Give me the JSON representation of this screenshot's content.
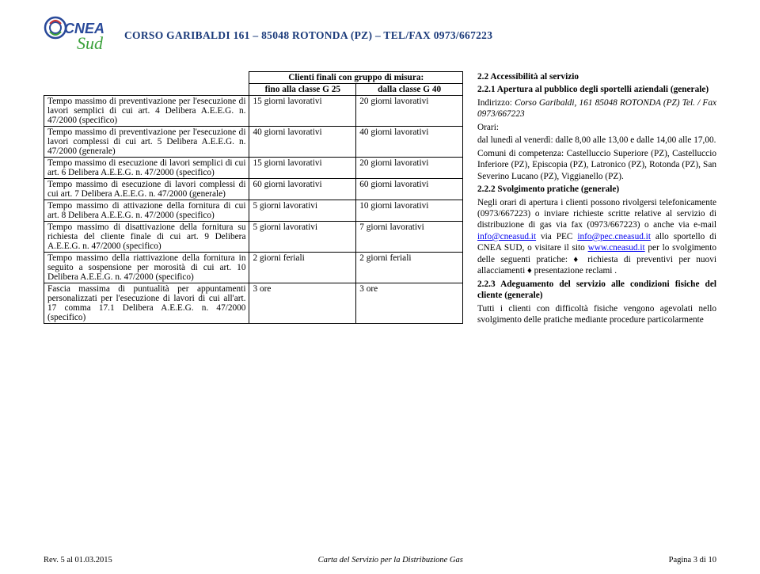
{
  "header": {
    "address": "CORSO GARIBALDI 161 – 85048 ROTONDA (PZ) – TEL/FAX  0973/667223"
  },
  "table": {
    "header_top": "Clienti finali con gruppo di misura:",
    "header_sub_left": "fino alla classe G 25",
    "header_sub_right": "dalla classe G 40",
    "rows": [
      {
        "desc": "Tempo massimo di preventivazione per l'esecuzione di lavori semplici di cui art. 4 Delibera A.E.E.G. n. 47/2000 (specifico)",
        "c1": "15 giorni lavorativi",
        "c2": "20 giorni lavorativi"
      },
      {
        "desc": "Tempo massimo di preventivazione per l'esecuzione di lavori complessi di cui art. 5 Delibera A.E.E.G. n. 47/2000 (generale)",
        "c1": "40 giorni lavorativi",
        "c2": "40 giorni lavorativi"
      },
      {
        "desc": "Tempo massimo di esecuzione di lavori semplici di cui art. 6 Delibera A.E.E.G. n. 47/2000 (specifico)",
        "c1": "15 giorni lavorativi",
        "c2": "20 giorni lavorativi"
      },
      {
        "desc": "Tempo massimo di esecuzione di lavori complessi di cui art. 7 Delibera A.E.E.G. n. 47/2000 (generale)",
        "c1": "60 giorni lavorativi",
        "c2": "60 giorni lavorativi"
      },
      {
        "desc": "Tempo massimo di attivazione della fornitura di cui art. 8 Delibera A.E.E.G. n. 47/2000 (specifico)",
        "c1": "5 giorni lavorativi",
        "c2": "10 giorni lavorativi"
      },
      {
        "desc": "Tempo massimo di disattivazione della fornitura su richiesta del cliente finale di cui art. 9 Delibera A.E.E.G. n. 47/2000 (specifico)",
        "c1": "5 giorni lavorativi",
        "c2": "7 giorni lavorativi"
      },
      {
        "desc": "Tempo massimo della riattivazione della fornitura in seguito a sospensione per morosità di cui art. 10 Delibera A.E.E.G. n. 47/2000 (specifico)",
        "c1": "2 giorni feriali",
        "c2": "2 giorni feriali"
      },
      {
        "desc": "Fascia massima di puntualità per appuntamenti personalizzati per l'esecuzione di lavori di cui all'art. 17 comma 17.1 Delibera A.E.E.G. n. 47/2000 (specifico)",
        "c1": "3 ore",
        "c2": "3 ore"
      }
    ]
  },
  "right": {
    "sec22": "2.2 Accessibilità al servizio",
    "sec221": "2.2.1 Apertura al pubblico degli sportelli aziendali (generale)",
    "p1a": "Indirizzo: ",
    "p1b": "Corso Garibaldi, 161 85048 ROTONDA (PZ)  Tel. / Fax 0973/667223",
    "p2": "Orari:",
    "p3": "dal lunedì al venerdì: dalle 8,00 alle 13,00 e dalle 14,00 alle 17,00.",
    "p4": "Comuni di competenza: Castelluccio Superiore (PZ), Castelluccio Inferiore (PZ), Episcopia (PZ), Latronico (PZ), Rotonda (PZ), San Severino Lucano (PZ), Viggianello (PZ).",
    "sec222": "2.2.2 Svolgimento pratiche (generale)",
    "p5a": "Negli orari di apertura i clienti possono rivolgersi telefonicamente (0973/667223) o inviare richieste scritte relative al servizio di distribuzione di gas via fax (0973/667223) o anche via e-mail ",
    "p5b": " via PEC ",
    "p5c": " allo sportello di CNEA SUD, o visitare il sito ",
    "p5d": " per lo svolgimento delle seguenti pratiche: ♦ richiesta di preventivi per nuovi allacciamenti ♦ presentazione reclami .",
    "link1": "info@cneasud.it",
    "link2": "info@pec.cneasud.it",
    "link3": "www.cneasud.it",
    "sec223": "2.2.3 Adeguamento del servizio alle condizioni fisiche del cliente (generale)",
    "p6": "Tutti i clienti con difficoltà fisiche vengono agevolati nello svolgimento delle pratiche mediante procedure particolarmente"
  },
  "footer": {
    "left": "Rev. 5 al 01.03.2015",
    "center": "Carta del Servizio per la Distribuzione Gas",
    "right": "Pagina 3 di 10"
  },
  "colors": {
    "header_text": "#1a3a7a",
    "logo_blue": "#2a4a9a",
    "logo_green": "#3aa03a",
    "logo_red": "#d03030",
    "link": "#0000ee"
  }
}
